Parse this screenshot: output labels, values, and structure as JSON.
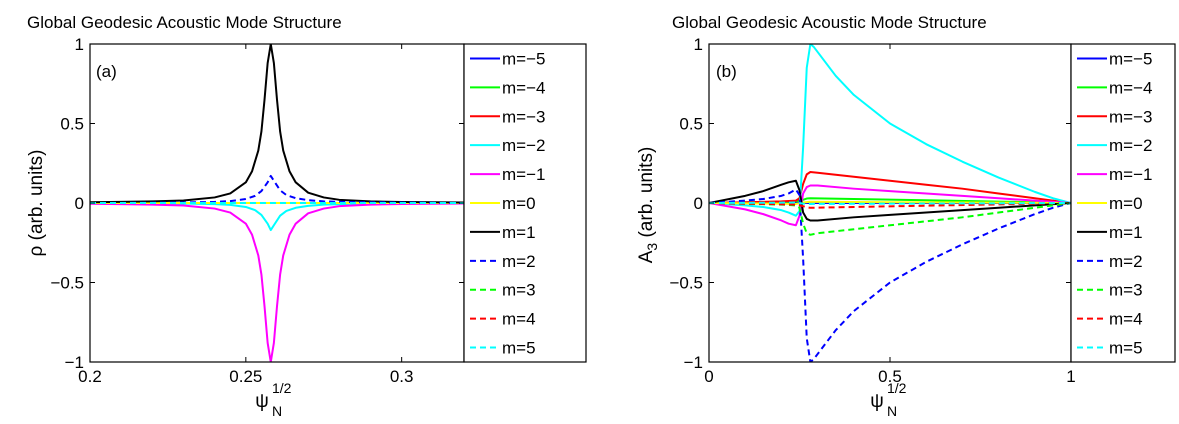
{
  "chart_data": [
    {
      "type": "line",
      "panel_label": "(a)",
      "title": "Global Geodesic Acoustic Mode Structure",
      "xlabel": "ψN1/2",
      "xlabel_main": "ψ",
      "xlabel_sup": "1/2",
      "xlabel_sub": "N",
      "ylabel": "ρ (arb. units)",
      "xlim": [
        0.2,
        0.32
      ],
      "ylim": [
        -1,
        1
      ],
      "xticks": [
        0.2,
        0.25,
        0.3
      ],
      "xtick_labels": [
        "0.2",
        "0.25",
        "0.3"
      ],
      "yticks": [
        -1,
        -0.5,
        0,
        0.5,
        1
      ],
      "ytick_labels": [
        "−1",
        "−0.5",
        "0",
        "0.5",
        "1"
      ],
      "grid": false,
      "legend_position": "outside-right",
      "legend": [
        "m=−5",
        "m=−4",
        "m=−3",
        "m=−2",
        "m=−1",
        "m=0",
        "m=1",
        "m=2",
        "m=3",
        "m=4",
        "m=5"
      ],
      "series": [
        {
          "name": "m=−5",
          "color": "#0000ff",
          "dash": false,
          "x": [
            0.2,
            0.32
          ],
          "y": [
            0,
            0
          ]
        },
        {
          "name": "m=−4",
          "color": "#00ff00",
          "dash": false,
          "x": [
            0.2,
            0.32
          ],
          "y": [
            0,
            0
          ]
        },
        {
          "name": "m=−3",
          "color": "#ff0000",
          "dash": false,
          "x": [
            0.2,
            0.32
          ],
          "y": [
            0,
            0
          ]
        },
        {
          "name": "m=−2",
          "color": "#00ffff",
          "dash": false,
          "x": [
            0.2,
            0.23,
            0.24,
            0.245,
            0.25,
            0.253,
            0.255,
            0.257,
            0.258,
            0.259,
            0.261,
            0.263,
            0.266,
            0.27,
            0.275,
            0.285,
            0.32
          ],
          "y": [
            0,
            -0.003,
            -0.007,
            -0.012,
            -0.025,
            -0.045,
            -0.075,
            -0.13,
            -0.17,
            -0.14,
            -0.08,
            -0.05,
            -0.03,
            -0.018,
            -0.01,
            -0.005,
            0
          ]
        },
        {
          "name": "m=−1",
          "color": "#ff00ff",
          "dash": false,
          "x": [
            0.2,
            0.22,
            0.23,
            0.24,
            0.245,
            0.25,
            0.252,
            0.254,
            0.255,
            0.256,
            0.257,
            0.258,
            0.259,
            0.26,
            0.261,
            0.262,
            0.264,
            0.266,
            0.27,
            0.275,
            0.28,
            0.29,
            0.3,
            0.32
          ],
          "y": [
            -0.005,
            -0.01,
            -0.016,
            -0.035,
            -0.06,
            -0.13,
            -0.2,
            -0.33,
            -0.45,
            -0.65,
            -0.88,
            -1.0,
            -0.88,
            -0.65,
            -0.45,
            -0.33,
            -0.2,
            -0.13,
            -0.065,
            -0.035,
            -0.02,
            -0.01,
            -0.006,
            -0.003
          ]
        },
        {
          "name": "m=0",
          "color": "#ffff00",
          "dash": false,
          "x": [
            0.2,
            0.32
          ],
          "y": [
            0,
            0
          ]
        },
        {
          "name": "m=1",
          "color": "#000000",
          "dash": false,
          "x": [
            0.2,
            0.22,
            0.23,
            0.24,
            0.245,
            0.25,
            0.252,
            0.254,
            0.255,
            0.256,
            0.257,
            0.258,
            0.259,
            0.26,
            0.261,
            0.262,
            0.264,
            0.266,
            0.27,
            0.275,
            0.28,
            0.29,
            0.3,
            0.32
          ],
          "y": [
            0.005,
            0.01,
            0.016,
            0.035,
            0.06,
            0.13,
            0.2,
            0.33,
            0.45,
            0.65,
            0.88,
            1.0,
            0.88,
            0.65,
            0.45,
            0.33,
            0.2,
            0.13,
            0.065,
            0.035,
            0.02,
            0.01,
            0.006,
            0.003
          ]
        },
        {
          "name": "m=2",
          "color": "#0000ff",
          "dash": true,
          "x": [
            0.2,
            0.23,
            0.24,
            0.245,
            0.25,
            0.253,
            0.255,
            0.257,
            0.258,
            0.259,
            0.261,
            0.263,
            0.266,
            0.27,
            0.275,
            0.285,
            0.32
          ],
          "y": [
            0,
            0.003,
            0.007,
            0.012,
            0.025,
            0.045,
            0.075,
            0.13,
            0.17,
            0.14,
            0.08,
            0.05,
            0.03,
            0.018,
            0.01,
            0.005,
            0
          ]
        },
        {
          "name": "m=3",
          "color": "#00ff00",
          "dash": true,
          "x": [
            0.2,
            0.32
          ],
          "y": [
            0,
            0
          ]
        },
        {
          "name": "m=4",
          "color": "#ff0000",
          "dash": true,
          "x": [
            0.2,
            0.32
          ],
          "y": [
            0,
            0
          ]
        },
        {
          "name": "m=5",
          "color": "#00ffff",
          "dash": true,
          "x": [
            0.2,
            0.32
          ],
          "y": [
            0,
            0
          ]
        }
      ]
    },
    {
      "type": "line",
      "panel_label": "(b)",
      "title": "Global Geodesic Acoustic Mode Structure",
      "xlabel": "ψN1/2",
      "xlabel_main": "ψ",
      "xlabel_sup": "1/2",
      "xlabel_sub": "N",
      "ylabel": "A3 (arb. units)",
      "ylabel_main": "A",
      "ylabel_sub": "3",
      "ylabel_rest": " (arb. units)",
      "xlim": [
        0,
        1
      ],
      "ylim": [
        -1,
        1
      ],
      "xticks": [
        0,
        0.5,
        1
      ],
      "xtick_labels": [
        "0",
        "0.5",
        "1"
      ],
      "yticks": [
        -1,
        -0.5,
        0,
        0.5,
        1
      ],
      "ytick_labels": [
        "−1",
        "−0.5",
        "0",
        "0.5",
        "1"
      ],
      "grid": false,
      "legend_position": "outside-right",
      "legend": [
        "m=−5",
        "m=−4",
        "m=−3",
        "m=−2",
        "m=−1",
        "m=0",
        "m=1",
        "m=2",
        "m=3",
        "m=4",
        "m=5"
      ],
      "series": [
        {
          "name": "m=−5",
          "color": "#0000ff",
          "dash": false,
          "x": [
            0,
            1
          ],
          "y": [
            0,
            0
          ]
        },
        {
          "name": "m=−4",
          "color": "#00ff00",
          "dash": false,
          "x": [
            0,
            0.1,
            0.2,
            0.24,
            0.26,
            0.27,
            0.28,
            0.4,
            0.6,
            0.8,
            1.0
          ],
          "y": [
            0,
            0.004,
            0.008,
            0.01,
            0.02,
            0.028,
            0.03,
            0.025,
            0.017,
            0.009,
            0
          ]
        },
        {
          "name": "m=−3",
          "color": "#ff0000",
          "dash": false,
          "x": [
            0,
            0.1,
            0.2,
            0.24,
            0.25,
            0.26,
            0.27,
            0.28,
            0.3,
            0.4,
            0.5,
            0.6,
            0.7,
            0.8,
            0.9,
            1.0
          ],
          "y": [
            0,
            0.005,
            0.01,
            0.015,
            0.03,
            0.12,
            0.18,
            0.195,
            0.19,
            0.165,
            0.14,
            0.115,
            0.09,
            0.06,
            0.03,
            0
          ]
        },
        {
          "name": "m=−2",
          "color": "#00ffff",
          "dash": false,
          "x": [
            0,
            0.1,
            0.15,
            0.2,
            0.22,
            0.24,
            0.25,
            0.26,
            0.27,
            0.28,
            0.29,
            0.3,
            0.35,
            0.4,
            0.5,
            0.6,
            0.7,
            0.8,
            0.9,
            0.95,
            1.0
          ],
          "y": [
            0,
            -0.015,
            -0.025,
            -0.045,
            -0.06,
            -0.08,
            -0.05,
            0.35,
            0.85,
            1.0,
            0.98,
            0.95,
            0.8,
            0.68,
            0.5,
            0.37,
            0.26,
            0.16,
            0.07,
            0.03,
            0
          ]
        },
        {
          "name": "m=−1",
          "color": "#ff00ff",
          "dash": false,
          "x": [
            0,
            0.1,
            0.15,
            0.2,
            0.22,
            0.24,
            0.25,
            0.26,
            0.27,
            0.28,
            0.3,
            0.4,
            0.5,
            0.6,
            0.7,
            0.8,
            0.9,
            1.0
          ],
          "y": [
            0,
            -0.04,
            -0.07,
            -0.11,
            -0.13,
            -0.14,
            -0.08,
            0.06,
            0.1,
            0.11,
            0.11,
            0.09,
            0.075,
            0.06,
            0.045,
            0.03,
            0.015,
            0
          ]
        },
        {
          "name": "m=0",
          "color": "#ffff00",
          "dash": false,
          "x": [
            0,
            0.2,
            0.24,
            0.26,
            0.28,
            0.5,
            0.8,
            1.0
          ],
          "y": [
            0,
            -0.004,
            -0.006,
            0.003,
            0.008,
            0.005,
            0.002,
            0
          ]
        },
        {
          "name": "m=1",
          "color": "#000000",
          "dash": false,
          "x": [
            0,
            0.1,
            0.15,
            0.2,
            0.22,
            0.24,
            0.25,
            0.26,
            0.27,
            0.28,
            0.3,
            0.4,
            0.5,
            0.6,
            0.7,
            0.8,
            0.9,
            1.0
          ],
          "y": [
            0,
            0.045,
            0.075,
            0.115,
            0.13,
            0.14,
            0.08,
            -0.06,
            -0.1,
            -0.11,
            -0.11,
            -0.09,
            -0.075,
            -0.06,
            -0.045,
            -0.03,
            -0.015,
            0
          ]
        },
        {
          "name": "m=2",
          "color": "#0000ff",
          "dash": true,
          "x": [
            0,
            0.1,
            0.15,
            0.2,
            0.22,
            0.24,
            0.25,
            0.26,
            0.27,
            0.28,
            0.29,
            0.3,
            0.35,
            0.4,
            0.5,
            0.6,
            0.7,
            0.8,
            0.9,
            0.95,
            1.0
          ],
          "y": [
            0,
            0.015,
            0.025,
            0.045,
            0.06,
            0.085,
            0.05,
            -0.35,
            -0.85,
            -1.0,
            -0.98,
            -0.95,
            -0.8,
            -0.68,
            -0.5,
            -0.37,
            -0.26,
            -0.16,
            -0.07,
            -0.03,
            0
          ]
        },
        {
          "name": "m=3",
          "color": "#00ff00",
          "dash": true,
          "x": [
            0,
            0.1,
            0.2,
            0.24,
            0.25,
            0.26,
            0.27,
            0.28,
            0.3,
            0.4,
            0.5,
            0.6,
            0.7,
            0.8,
            0.9,
            1.0
          ],
          "y": [
            0,
            -0.005,
            -0.01,
            -0.015,
            -0.03,
            -0.13,
            -0.19,
            -0.2,
            -0.19,
            -0.165,
            -0.14,
            -0.115,
            -0.09,
            -0.06,
            -0.03,
            0
          ]
        },
        {
          "name": "m=4",
          "color": "#ff0000",
          "dash": true,
          "x": [
            0,
            0.1,
            0.2,
            0.24,
            0.26,
            0.27,
            0.28,
            0.4,
            0.6,
            0.8,
            1.0
          ],
          "y": [
            0,
            -0.004,
            -0.008,
            -0.01,
            -0.02,
            -0.028,
            -0.03,
            -0.025,
            -0.017,
            -0.009,
            0
          ]
        },
        {
          "name": "m=5",
          "color": "#00ffff",
          "dash": true,
          "x": [
            0,
            0.2,
            0.24,
            0.26,
            0.28,
            0.5,
            0.8,
            1.0
          ],
          "y": [
            0,
            0.002,
            0.003,
            -0.004,
            -0.006,
            -0.004,
            -0.002,
            0
          ]
        }
      ]
    }
  ]
}
